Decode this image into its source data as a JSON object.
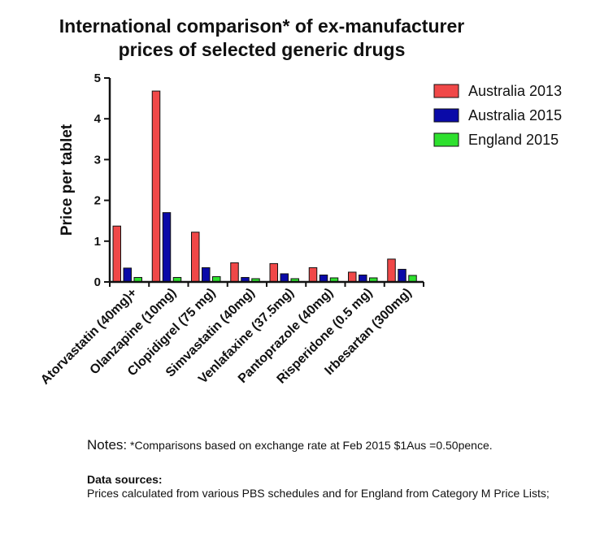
{
  "chart_data": {
    "type": "bar",
    "title": [
      "International comparison* of ex-manufacturer",
      "prices of selected generic drugs"
    ],
    "ylabel": "Price per tablet",
    "ylim": [
      0,
      5
    ],
    "yticks": [
      "0",
      "1",
      "2",
      "3",
      "4",
      "5"
    ],
    "categories": [
      "Atorvastatin (40mg)+",
      "Olanzapine (10mg)",
      "Clopidigrel (75 mg)",
      "Simvastatin (40mg)",
      "Venlafaxine (37.5mg)",
      "Pantoprazole (40mg)",
      "Risperidone (0.5 mg)",
      "Irbesartan (300mg)"
    ],
    "series": [
      {
        "name": "Australia 2013",
        "color": "#f04848",
        "values": [
          1.37,
          4.68,
          1.22,
          0.47,
          0.45,
          0.35,
          0.24,
          0.56
        ]
      },
      {
        "name": "Australia 2015",
        "color": "#0a0aa8",
        "values": [
          0.34,
          1.7,
          0.35,
          0.11,
          0.2,
          0.17,
          0.17,
          0.31
        ]
      },
      {
        "name": "England 2015",
        "color": "#2ee02e",
        "values": [
          0.11,
          0.11,
          0.13,
          0.08,
          0.08,
          0.1,
          0.1,
          0.16
        ]
      }
    ],
    "legend_position": "top-right"
  },
  "notes": {
    "label": "Notes:",
    "text": " *Comparisons based on exchange rate at Feb 2015 $1Aus =0.50pence."
  },
  "sources": {
    "heading": "Data sources:",
    "text": "Prices calculated from various PBS schedules and for England from Category M Price Lists;"
  }
}
